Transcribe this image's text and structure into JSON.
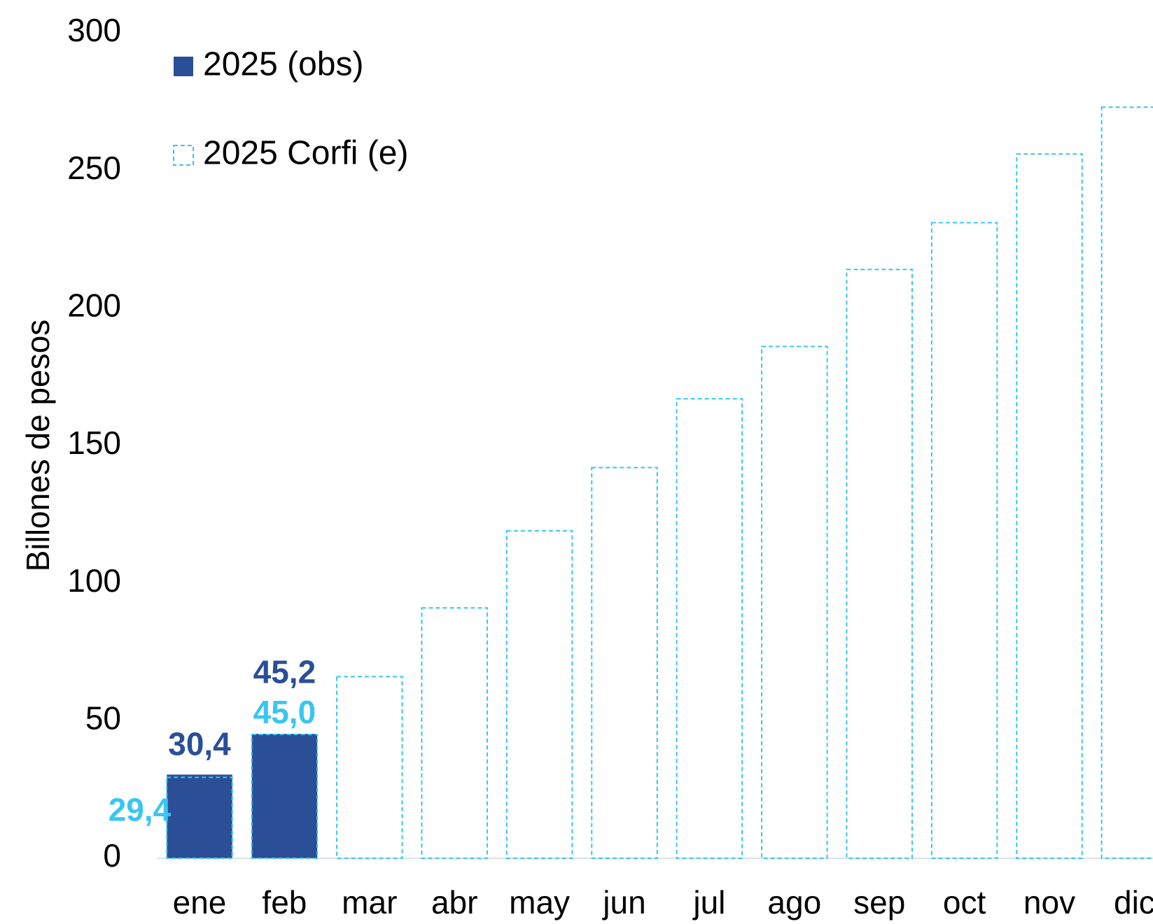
{
  "chart_data": {
    "type": "bar",
    "y_label": "Billones de pesos",
    "categories": [
      "ene",
      "feb",
      "mar",
      "abr",
      "may",
      "jun",
      "jul",
      "ago",
      "sep",
      "oct",
      "nov",
      "dic"
    ],
    "series": [
      {
        "name": "2025 (obs)",
        "color": "#2a4f96",
        "style": "solid",
        "values": [
          30.4,
          45.2,
          null,
          null,
          null,
          null,
          null,
          null,
          null,
          null,
          null,
          null
        ],
        "value_labels": [
          "30,4",
          "45,2",
          null,
          null,
          null,
          null,
          null,
          null,
          null,
          null,
          null,
          null
        ]
      },
      {
        "name": "2025 Corfi (e)",
        "color": "#39c6f0",
        "style": "dashed",
        "values": [
          29.4,
          45.0,
          66,
          91,
          119,
          142,
          167,
          186,
          214,
          231,
          256,
          273
        ],
        "value_labels": [
          "29,4",
          "45,0",
          null,
          null,
          null,
          null,
          null,
          null,
          null,
          null,
          null,
          null
        ]
      }
    ],
    "ylim": [
      0,
      300
    ],
    "yticks": [
      0,
      50,
      100,
      150,
      200,
      250,
      300
    ],
    "grid": false,
    "legend": "top-left"
  }
}
